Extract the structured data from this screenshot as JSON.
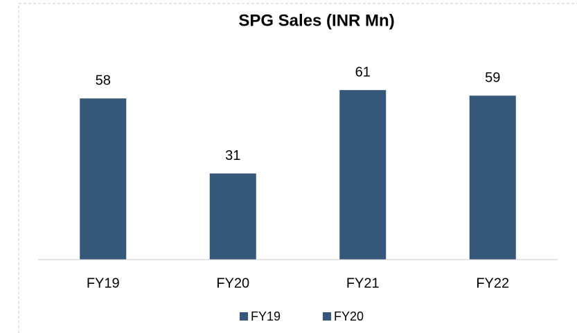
{
  "chart_data": {
    "type": "bar",
    "title": "SPG Sales (INR Mn)",
    "categories": [
      "FY19",
      "FY20",
      "FY21",
      "FY22"
    ],
    "values": [
      58,
      31,
      61,
      59
    ],
    "color": "#34577a",
    "ylim": [
      0,
      70
    ],
    "legend": [
      {
        "name": "FY19",
        "color": "#34577a"
      },
      {
        "name": "FY20",
        "color": "#34577a"
      }
    ]
  }
}
